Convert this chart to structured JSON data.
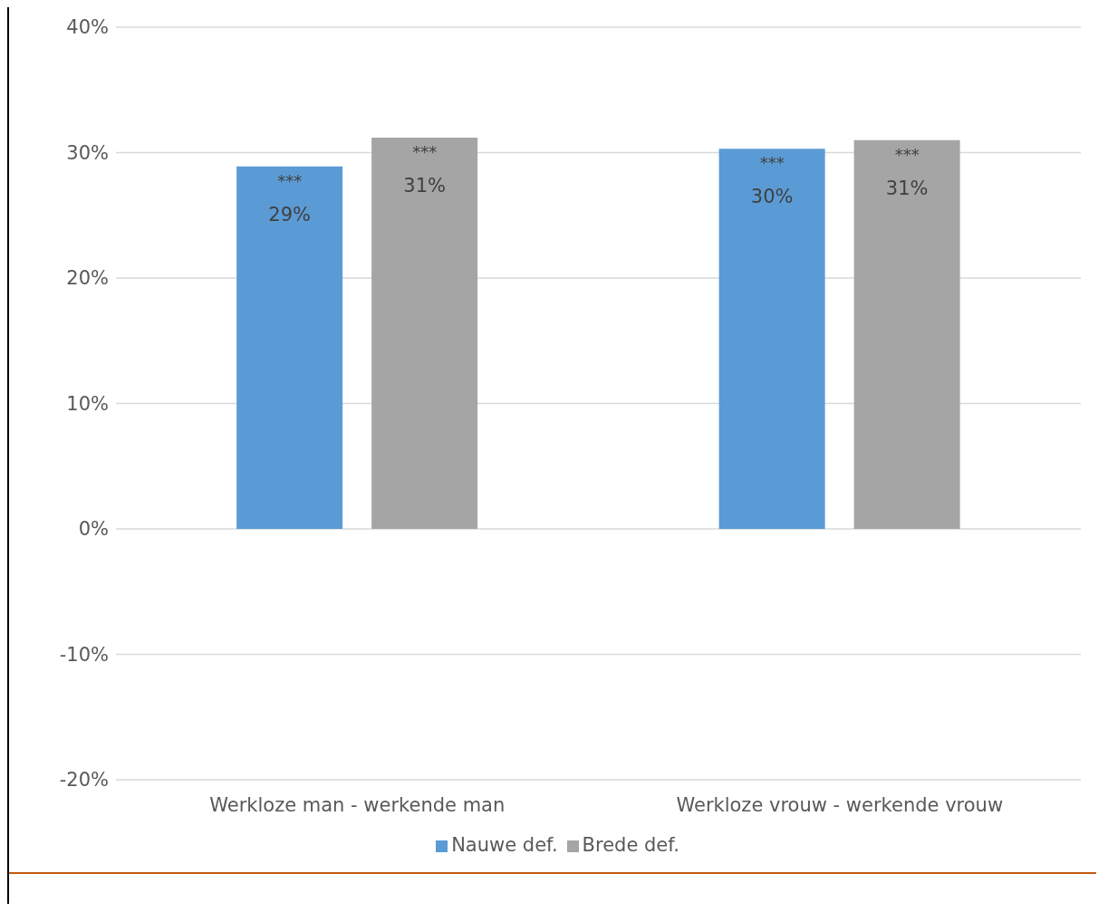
{
  "chart_data": {
    "type": "bar",
    "categories": [
      "Werkloze man - werkende man",
      "Werkloze vrouw - werkende vrouw"
    ],
    "series": [
      {
        "name": "Nauwe def.",
        "color": "#5b9bd5",
        "values": [
          28.9,
          30.3
        ],
        "value_labels": [
          "29%",
          "30%"
        ]
      },
      {
        "name": "Brede def.",
        "color": "#a5a5a5",
        "values": [
          31.2,
          31.0
        ],
        "value_labels": [
          "31%",
          "31%"
        ]
      }
    ],
    "annotations": [
      "***",
      "***",
      "***",
      "***"
    ],
    "ylim": [
      -20,
      40
    ],
    "yticks": [
      {
        "value": -20,
        "label": "-20%"
      },
      {
        "value": -10,
        "label": "-10%"
      },
      {
        "value": 0,
        "label": "0%"
      },
      {
        "value": 10,
        "label": "10%"
      },
      {
        "value": 20,
        "label": "20%"
      },
      {
        "value": 30,
        "label": "30%"
      },
      {
        "value": 40,
        "label": "40%"
      }
    ],
    "grid": "y",
    "legend": "bottom"
  }
}
